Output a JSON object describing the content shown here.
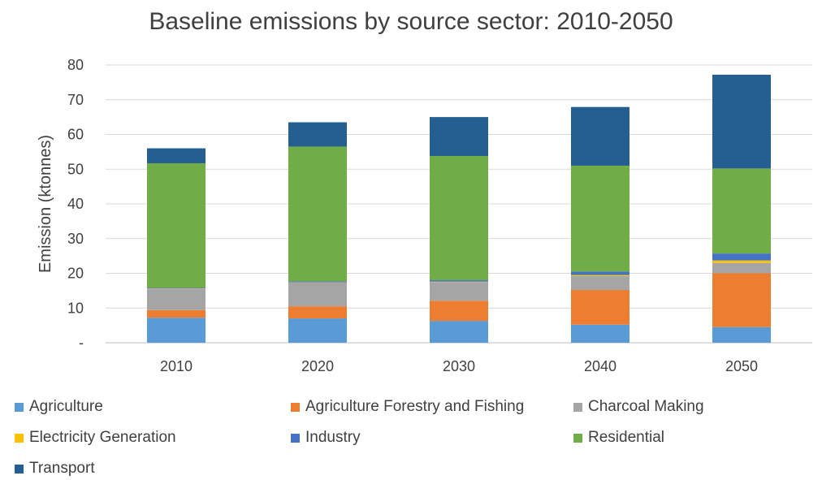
{
  "chart_data": {
    "type": "bar",
    "stacked": true,
    "title": "Baseline emissions by source sector: 2010-2050",
    "xlabel": "",
    "ylabel": "Emission (ktonnes)",
    "ylim": [
      0,
      80
    ],
    "yticks": [
      "-",
      "10",
      "20",
      "30",
      "40",
      "50",
      "60",
      "70",
      "80"
    ],
    "ytick_values": [
      0,
      10,
      20,
      30,
      40,
      50,
      60,
      70,
      80
    ],
    "grid": true,
    "legend_position": "bottom",
    "categories": [
      "2010",
      "2020",
      "2030",
      "2040",
      "2050"
    ],
    "series": [
      {
        "name": "Agriculture",
        "color": "#5B9BD5",
        "values": [
          7.2,
          7.0,
          6.3,
          5.2,
          4.5
        ]
      },
      {
        "name": "Agriculture Forestry and Fishing",
        "color": "#ED7D31",
        "values": [
          2.2,
          3.5,
          5.8,
          10.0,
          15.5
        ]
      },
      {
        "name": "Charcoal Making",
        "color": "#A5A5A5",
        "values": [
          6.2,
          6.8,
          5.4,
          4.0,
          3.0
        ]
      },
      {
        "name": "Electricity Generation",
        "color": "#FFC000",
        "values": [
          0.1,
          0.1,
          0.1,
          0.3,
          0.7
        ]
      },
      {
        "name": "Industry",
        "color": "#4472C4",
        "values": [
          0.2,
          0.3,
          0.4,
          1.0,
          2.0
        ]
      },
      {
        "name": "Residential",
        "color": "#70AD47",
        "values": [
          35.8,
          38.8,
          35.8,
          30.5,
          24.5
        ]
      },
      {
        "name": "Transport",
        "color": "#255E91",
        "values": [
          4.3,
          7.0,
          11.2,
          16.9,
          27.0
        ]
      }
    ]
  }
}
